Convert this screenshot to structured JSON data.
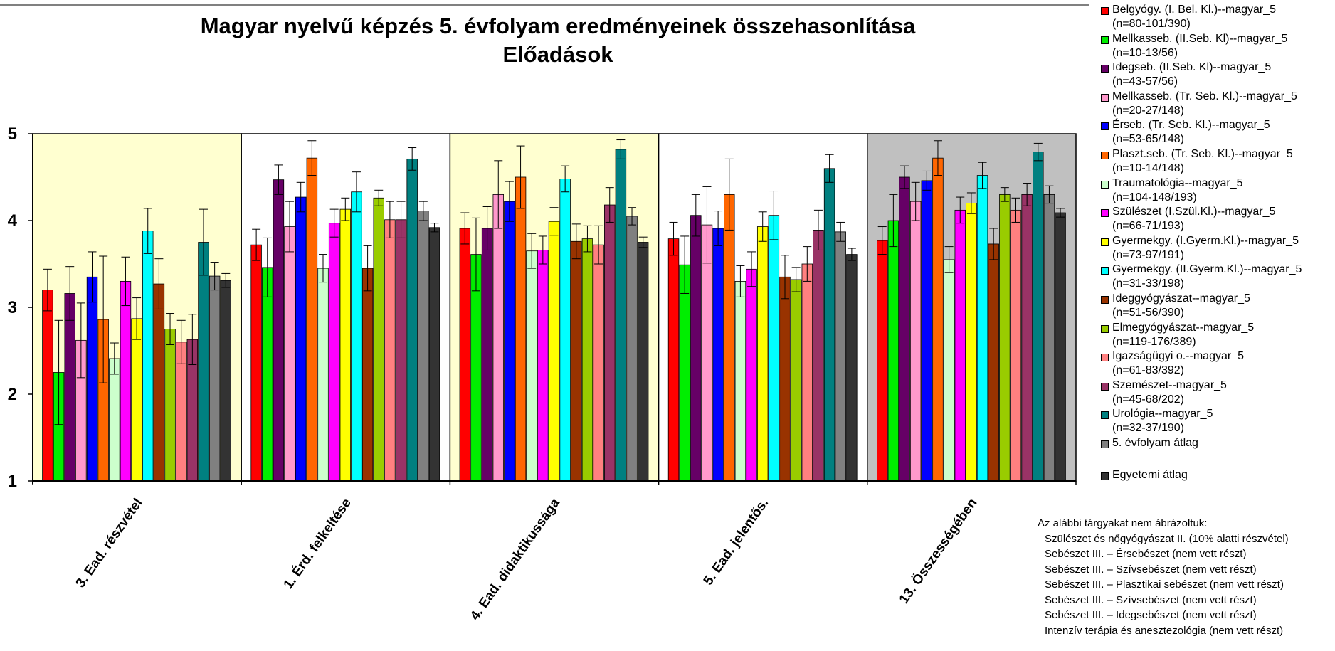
{
  "chart_data": {
    "type": "bar",
    "title": "Magyar nyelvű képzés 5. évfolyam eredményeinek összehasonlítása",
    "subtitle": "Előadások",
    "ylim": [
      1,
      5
    ],
    "yticks": [
      "1",
      "2",
      "3",
      "4",
      "5"
    ],
    "categories": [
      "3. Ead. részvétel",
      "1. Érd. felkeltése",
      "4. Ead. didaktikussága",
      "5. Ead. jelentős.",
      "13. Összességében"
    ],
    "category_backgrounds": [
      "#ffffd0",
      "#ffffff",
      "#ffffd0",
      "#ffffff",
      "#c0c0c0"
    ],
    "error_bars": true,
    "series": [
      {
        "name": "Belgyógy. (I. Bel. Kl.)--magyar_5",
        "n": "(n=80-101/390)",
        "color": "#ff0000",
        "values": [
          3.2,
          3.72,
          3.91,
          3.79,
          3.77
        ],
        "errors": [
          0.24,
          0.18,
          0.18,
          0.19,
          0.16
        ]
      },
      {
        "name": "Mellkasseb. (II.Seb. Kl)--magyar_5",
        "n": "(n=10-13/56)",
        "color": "#00ee00",
        "values": [
          2.25,
          3.46,
          3.61,
          3.49,
          4.0
        ],
        "errors": [
          0.6,
          0.34,
          0.42,
          0.33,
          0.3
        ]
      },
      {
        "name": "Idegseb. (II.Seb. Kl)--magyar_5",
        "n": "(n=43-57/56)",
        "color": "#660066",
        "values": [
          3.16,
          4.47,
          3.91,
          4.06,
          4.5
        ],
        "errors": [
          0.31,
          0.17,
          0.25,
          0.24,
          0.13
        ]
      },
      {
        "name": "Mellkasseb. (Tr. Seb. Kl.)--magyar_5",
        "n": "(n=20-27/148)",
        "color": "#ff99cc",
        "values": [
          2.62,
          3.93,
          4.3,
          3.95,
          4.22
        ],
        "errors": [
          0.43,
          0.29,
          0.39,
          0.44,
          0.22
        ]
      },
      {
        "name": "Érseb. (Tr. Seb. Kl.)--magyar_5",
        "n": "(n=53-65/148)",
        "color": "#0000ff",
        "values": [
          3.35,
          4.27,
          4.22,
          3.91,
          4.46
        ],
        "errors": [
          0.29,
          0.17,
          0.23,
          0.2,
          0.11
        ]
      },
      {
        "name": "Plaszt.seb. (Tr. Seb. Kl.)--magyar_5",
        "n": "(n=10-14/148)",
        "color": "#ff6600",
        "values": [
          2.86,
          4.72,
          4.5,
          4.3,
          4.72
        ],
        "errors": [
          0.73,
          0.2,
          0.36,
          0.41,
          0.2
        ]
      },
      {
        "name": "Traumatológia--magyar_5",
        "n": "(n=104-148/193)",
        "color": "#ccffcc",
        "values": [
          2.41,
          3.45,
          3.65,
          3.3,
          3.55
        ],
        "errors": [
          0.18,
          0.16,
          0.2,
          0.18,
          0.15
        ]
      },
      {
        "name": "Szülészet (I.Szül.Kl.)--magyar_5",
        "n": "(n=66-71/193)",
        "color": "#ff00ff",
        "values": [
          3.3,
          3.97,
          3.66,
          3.44,
          4.12
        ],
        "errors": [
          0.28,
          0.16,
          0.16,
          0.2,
          0.15
        ]
      },
      {
        "name": "Gyermekgy. (I.Gyerm.Kl.)--magyar_5",
        "n": "(n=73-97/191)",
        "color": "#ffff00",
        "values": [
          2.87,
          4.13,
          3.99,
          3.93,
          4.2
        ],
        "errors": [
          0.24,
          0.13,
          0.16,
          0.17,
          0.12
        ]
      },
      {
        "name": "Gyermekgy. (II.Gyerm.Kl.)--magyar_5",
        "n": "(n=31-33/198)",
        "color": "#00ffff",
        "values": [
          3.88,
          4.33,
          4.48,
          4.06,
          4.52
        ],
        "errors": [
          0.26,
          0.23,
          0.15,
          0.28,
          0.15
        ]
      },
      {
        "name": "Ideggyógyászat--magyar_5",
        "n": "(n=51-56/390)",
        "color": "#993300",
        "values": [
          3.27,
          3.45,
          3.76,
          3.35,
          3.73
        ],
        "errors": [
          0.29,
          0.26,
          0.2,
          0.25,
          0.18
        ]
      },
      {
        "name": "Elmegyógyászat--magyar_5",
        "n": "(n=119-176/389)",
        "color": "#99cc00",
        "values": [
          2.75,
          4.26,
          3.79,
          3.32,
          4.3
        ],
        "errors": [
          0.18,
          0.09,
          0.15,
          0.14,
          0.08
        ]
      },
      {
        "name": "Igazságügyi o.--magyar_5",
        "n": "(n=61-83/392)",
        "color": "#ff8080",
        "values": [
          2.6,
          4.01,
          3.72,
          3.5,
          4.12
        ],
        "errors": [
          0.25,
          0.21,
          0.22,
          0.2,
          0.14
        ]
      },
      {
        "name": "Szemészet--magyar_5",
        "n": "(n=45-68/202)",
        "color": "#993366",
        "values": [
          2.63,
          4.01,
          4.18,
          3.89,
          4.3
        ],
        "errors": [
          0.29,
          0.21,
          0.2,
          0.23,
          0.13
        ]
      },
      {
        "name": "Urológia--magyar_5",
        "n": "(n=32-37/190)",
        "color": "#008080",
        "values": [
          3.75,
          4.71,
          4.82,
          4.6,
          4.79
        ],
        "errors": [
          0.38,
          0.13,
          0.11,
          0.16,
          0.1
        ]
      },
      {
        "name": "5. évfolyam átlag",
        "n": "",
        "color": "#808080",
        "values": [
          3.36,
          4.11,
          4.05,
          3.87,
          4.3
        ],
        "errors": [
          0.16,
          0.11,
          0.1,
          0.11,
          0.1
        ]
      },
      {
        "name": "Egyetemi átlag",
        "n": "",
        "color": "#333333",
        "values": [
          3.31,
          3.92,
          3.75,
          3.61,
          4.09
        ],
        "errors": [
          0.08,
          0.05,
          0.06,
          0.07,
          0.05
        ]
      }
    ]
  },
  "notes": {
    "heading": "Az alábbi tárgyakat nem ábrázoltuk:",
    "lines": [
      "Szülészet és nőgyógyászat II. (10% alatti részvétel)",
      "Sebészet III. – Érsebészet (nem vett részt)",
      "Sebészet III. – Szívsebészet (nem vett részt)",
      "Sebészet III. – Plasztikai sebészet (nem vett részt)",
      "Sebészet III. – Szívsebészet (nem vett részt)",
      "Sebészet III. – Idegsebészet (nem vett részt)",
      "Intenzív terápia és anesztezológia (nem vett részt)"
    ]
  }
}
